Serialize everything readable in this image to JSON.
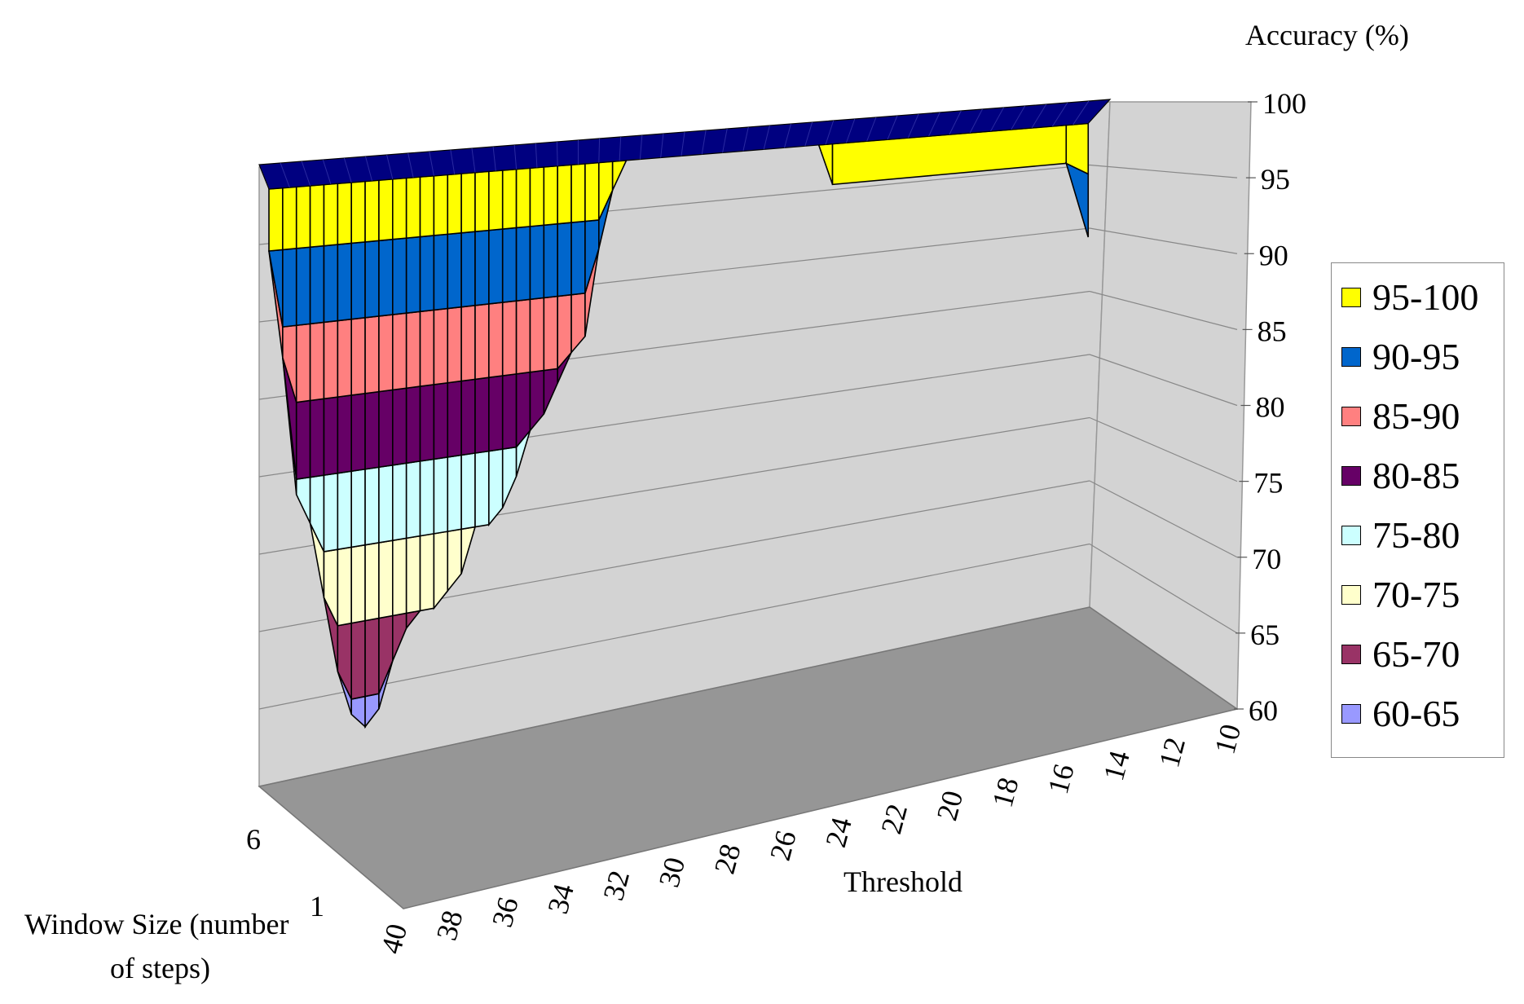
{
  "chart_data": {
    "type": "surface",
    "title": "",
    "zlabel": "Accuracy (%)",
    "xlabel": "Threshold",
    "ylabel": "Window Size (number of steps)",
    "zlim": [
      60,
      100
    ],
    "z_ticks": [
      "100",
      "95",
      "90",
      "85",
      "80",
      "75",
      "70",
      "65",
      "60"
    ],
    "threshold_ticks": [
      "10",
      "12",
      "14",
      "16",
      "18",
      "20",
      "22",
      "24",
      "26",
      "28",
      "30",
      "32",
      "34",
      "36",
      "38",
      "40"
    ],
    "window_ticks": [
      "1",
      "6"
    ],
    "legend": {
      "placement": "right",
      "entries": [
        {
          "label": "95-100",
          "color": "#FFFF00"
        },
        {
          "label": "90-95",
          "color": "#0066CC"
        },
        {
          "label": "85-90",
          "color": "#FF8080"
        },
        {
          "label": "80-85",
          "color": "#660066"
        },
        {
          "label": "75-80",
          "color": "#CCFFFF"
        },
        {
          "label": "70-75",
          "color": "#FFFFCC"
        },
        {
          "label": "65-70",
          "color": "#993366"
        },
        {
          "label": "60-65",
          "color": "#9999FF"
        }
      ]
    },
    "top_color": "#000080",
    "front_edge_min_accuracy": [
      {
        "threshold": 40,
        "accuracy": 95
      },
      {
        "threshold": 39.5,
        "accuracy": 88
      },
      {
        "threshold": 39,
        "accuracy": 79
      },
      {
        "threshold": 38.5,
        "accuracy": 77
      },
      {
        "threshold": 38,
        "accuracy": 72
      },
      {
        "threshold": 37.5,
        "accuracy": 67
      },
      {
        "threshold": 37,
        "accuracy": 64
      },
      {
        "threshold": 36.5,
        "accuracy": 63
      },
      {
        "threshold": 36,
        "accuracy": 64
      },
      {
        "threshold": 35.5,
        "accuracy": 67
      },
      {
        "threshold": 35,
        "accuracy": 69
      },
      {
        "threshold": 34.5,
        "accuracy": 70
      },
      {
        "threshold": 34,
        "accuracy": 70
      },
      {
        "threshold": 33.5,
        "accuracy": 71
      },
      {
        "threshold": 33,
        "accuracy": 72
      },
      {
        "threshold": 32.5,
        "accuracy": 75
      },
      {
        "threshold": 32,
        "accuracy": 75
      },
      {
        "threshold": 31.5,
        "accuracy": 76
      },
      {
        "threshold": 31,
        "accuracy": 78
      },
      {
        "threshold": 30.5,
        "accuracy": 81
      },
      {
        "threshold": 30,
        "accuracy": 82
      },
      {
        "threshold": 29.5,
        "accuracy": 84
      },
      {
        "threshold": 29,
        "accuracy": 86
      },
      {
        "threshold": 28.5,
        "accuracy": 87
      },
      {
        "threshold": 28,
        "accuracy": 93
      },
      {
        "threshold": 27.5,
        "accuracy": 97
      },
      {
        "threshold": 27,
        "accuracy": 99
      },
      {
        "threshold": 20,
        "accuracy": 99
      },
      {
        "threshold": 19.5,
        "accuracy": 96
      },
      {
        "threshold": 11,
        "accuracy": 96
      },
      {
        "threshold": 10.2,
        "accuracy": 90
      }
    ]
  }
}
